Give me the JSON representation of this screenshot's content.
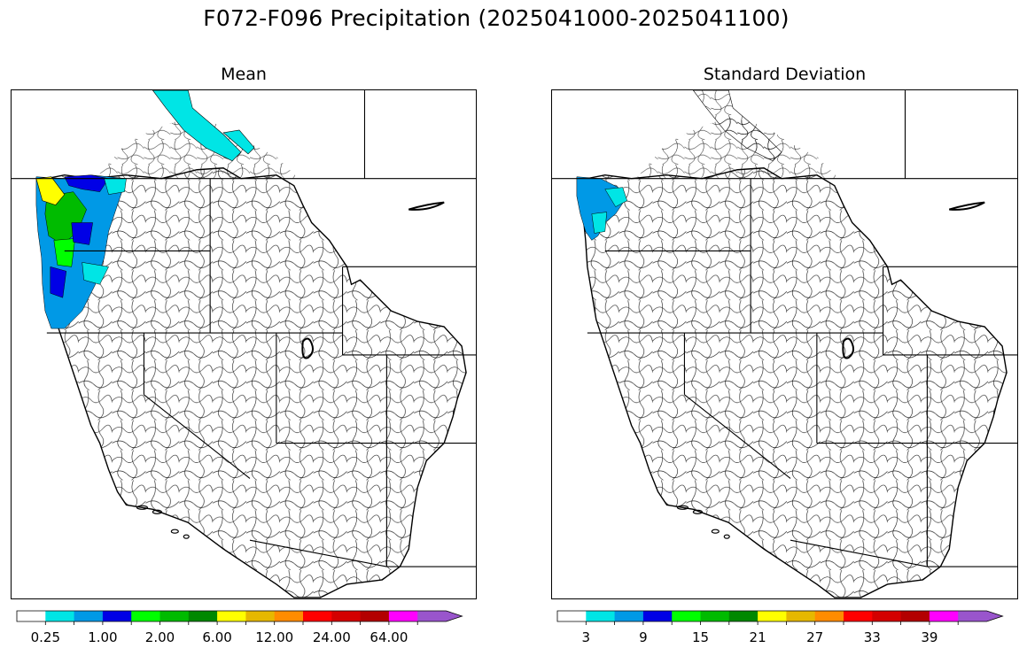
{
  "figure": {
    "title": "F072-F096 Precipitation (2025041000-2025041100)"
  },
  "panels": [
    {
      "id": "mean",
      "title": "Mean"
    },
    {
      "id": "sd",
      "title": "Standard Deviation"
    }
  ],
  "colorbars": {
    "mean": {
      "colors": [
        "#ffffff",
        "#00e5e5",
        "#0099e6",
        "#0000e6",
        "#00ff00",
        "#00bb00",
        "#008800",
        "#ffff00",
        "#e6b800",
        "#ff8c00",
        "#ff0000",
        "#d40000",
        "#b30000",
        "#ff00ff",
        "#9955cc"
      ],
      "tick_labels": [
        "0.25",
        "1.00",
        "2.00",
        "6.00",
        "12.00",
        "24.00",
        "64.00"
      ],
      "extend": "max"
    },
    "sd": {
      "colors": [
        "#ffffff",
        "#00e5e5",
        "#0099e6",
        "#0000e6",
        "#00ff00",
        "#00bb00",
        "#008800",
        "#ffff00",
        "#e6b800",
        "#ff8c00",
        "#ff0000",
        "#d40000",
        "#b30000",
        "#ff00ff",
        "#9955cc"
      ],
      "tick_labels": [
        "3",
        "9",
        "15",
        "21",
        "27",
        "33",
        "39"
      ],
      "extend": "max"
    }
  },
  "legend_colors": {
    "basin_outline": "#000000",
    "state_border": "#000000"
  }
}
